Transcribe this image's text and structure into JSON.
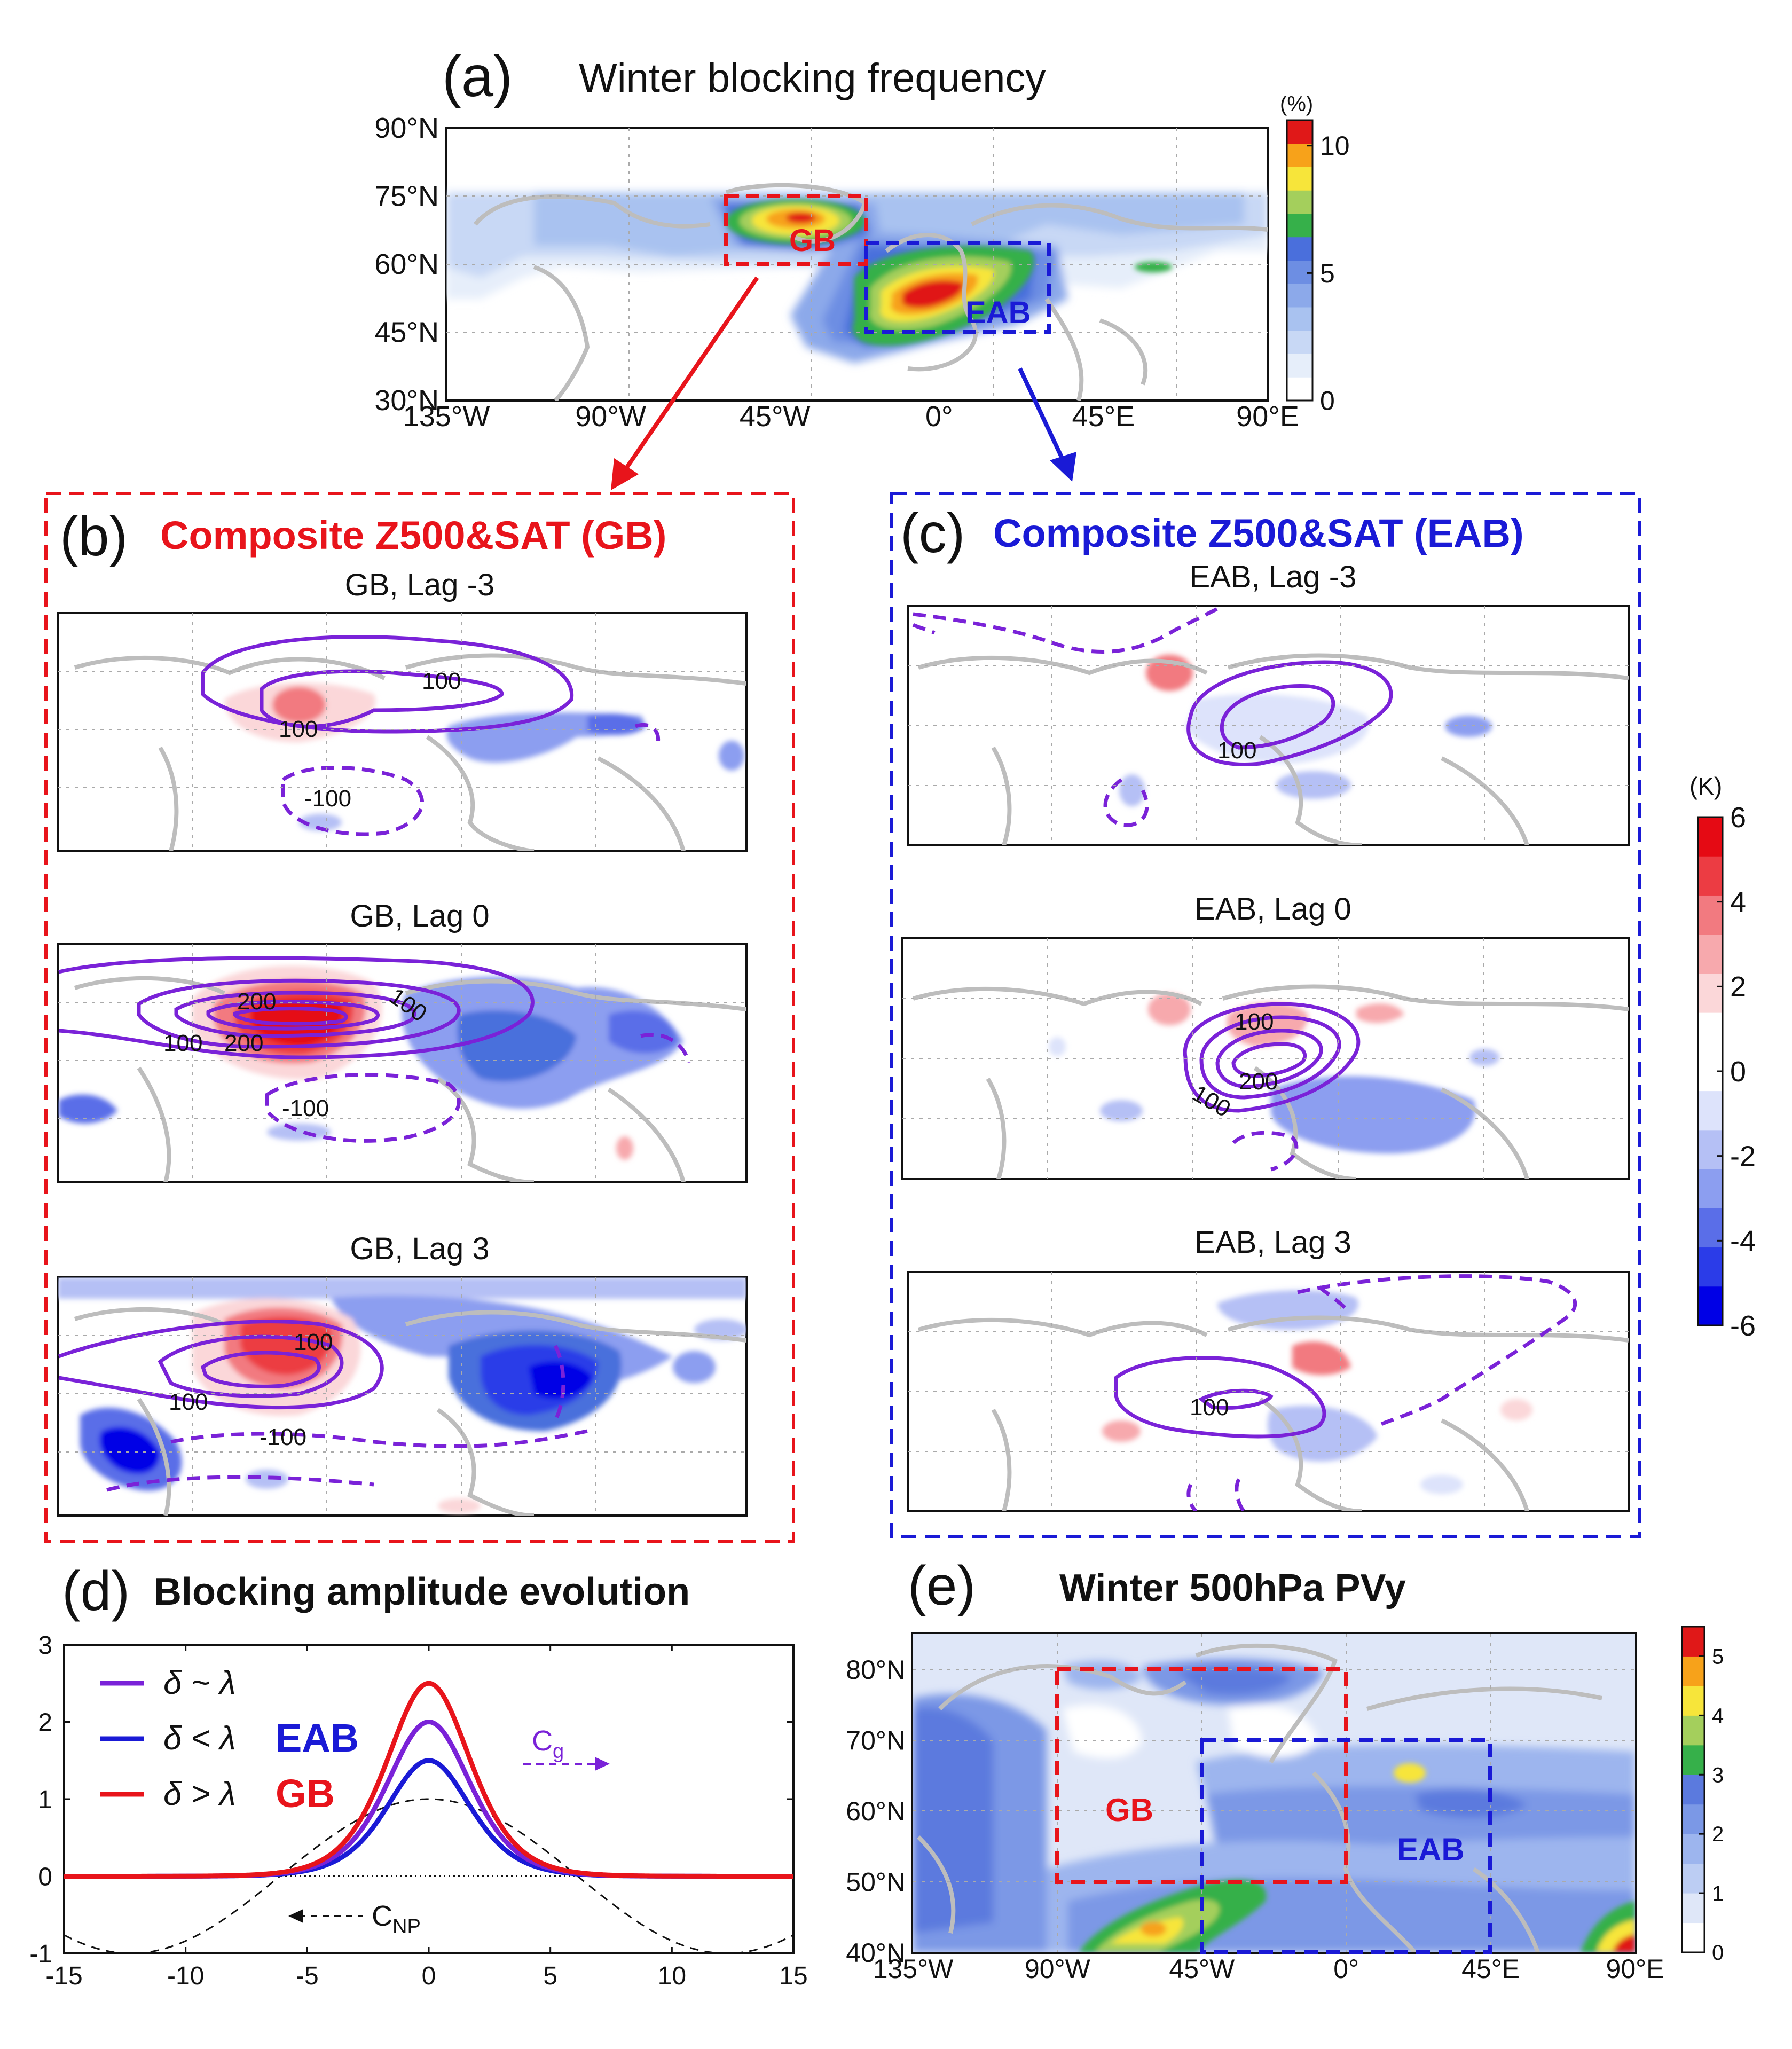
{
  "colors": {
    "red": "#e8141b",
    "blue": "#1a1ad6",
    "purple": "#7a22d8",
    "coast": "#bdbdbd",
    "black": "#111111"
  },
  "panels": {
    "a": {
      "letter": "(a)",
      "title": "Winter blocking frequency",
      "box_gb": "GB",
      "box_eab": "EAB",
      "cbar_unit": "(%)"
    },
    "b": {
      "letter": "(b)",
      "title": "Composite Z500&SAT (GB)",
      "sub": [
        "GB, Lag -3",
        "GB, Lag 0",
        "GB, Lag 3"
      ]
    },
    "c": {
      "letter": "(c)",
      "title": "Composite Z500&SAT (EAB)",
      "sub": [
        "EAB, Lag -3",
        "EAB, Lag 0",
        "EAB, Lag 3"
      ],
      "cbar_unit": "(K)"
    },
    "d": {
      "letter": "(d)",
      "title": "Blocking amplitude evolution"
    },
    "e": {
      "letter": "(e)",
      "title": "Winter 500hPa PVy",
      "box_gb": "GB",
      "box_eab": "EAB"
    }
  },
  "contour_labels": {
    "b1": [
      "100",
      "100",
      "-100"
    ],
    "b2": [
      "200",
      "100",
      "100",
      "200",
      "-100"
    ],
    "b3": [
      "100",
      "100",
      "-100"
    ],
    "c1": [
      "100"
    ],
    "c2": [
      "100",
      "200",
      "100"
    ],
    "c3": [
      "100"
    ]
  },
  "chart_data": [
    {
      "id": "a",
      "type": "heatmap",
      "title": "Winter blocking frequency",
      "xlabel_ticks": [
        "135°W",
        "90°W",
        "45°W",
        "0°",
        "45°E",
        "90°E"
      ],
      "ylabel_ticks": [
        "90°N",
        "75°N",
        "60°N",
        "45°N",
        "30°N"
      ],
      "xlim": [
        -135,
        90
      ],
      "ylim": [
        30,
        90
      ],
      "colorbar": {
        "unit": "(%)",
        "range": [
          0,
          11
        ],
        "ticks": [
          "10",
          "5",
          "0"
        ],
        "tick_values": [
          10,
          5,
          0
        ],
        "colors": [
          "#ffffff",
          "#e6eefa",
          "#c8d8f5",
          "#a9c2f0",
          "#8ca9ea",
          "#6d8ee3",
          "#4a6fdc",
          "#36b04a",
          "#a4cf5c",
          "#f7e53a",
          "#f7a21a",
          "#e01818"
        ]
      },
      "boxes": [
        {
          "name": "GB",
          "lon": [
            -60,
            -20
          ],
          "lat": [
            60,
            75
          ]
        },
        {
          "name": "EAB",
          "lon": [
            -20,
            30
          ],
          "lat": [
            45,
            65
          ]
        }
      ],
      "maxima": [
        {
          "lon": -42,
          "lat": 68,
          "value": 10.5
        },
        {
          "lon": 0,
          "lat": 55,
          "value": 10.8
        }
      ]
    },
    {
      "id": "b-c",
      "type": "heatmap",
      "colorbar": {
        "unit": "(K)",
        "range": [
          -6,
          6
        ],
        "ticks": [
          "6",
          "4",
          "2",
          "0",
          "-2",
          "-4",
          "-6"
        ],
        "tick_values": [
          6,
          4,
          2,
          0,
          -2,
          -4,
          -6
        ],
        "colors": [
          "#0000e6",
          "#2b3ce8",
          "#5a6ee8",
          "#8c9ef0",
          "#b5c0f5",
          "#dde3fb",
          "#ffffff",
          "#ffffff",
          "#fbd7d9",
          "#f7a9ad",
          "#f27a80",
          "#ec3c43",
          "#e50a14"
        ]
      },
      "contour_interval": 50,
      "note": "Z500 (gpm) contours with SAT (K) shading for lags -3, 0, 3 days"
    },
    {
      "id": "d",
      "type": "line",
      "title": "Blocking amplitude evolution",
      "xlim": [
        -15,
        15
      ],
      "ylim": [
        -1,
        3
      ],
      "xticks": [
        "-15",
        "-10",
        "-5",
        "0",
        "5",
        "10",
        "15"
      ],
      "yticks": [
        "3",
        "2",
        "1",
        "0",
        "-1"
      ],
      "xtick_values": [
        -15,
        -10,
        -5,
        0,
        5,
        10,
        15
      ],
      "ytick_values": [
        3,
        2,
        1,
        0,
        -1
      ],
      "series": [
        {
          "name": "δ ~ λ",
          "color": "#7a22d8",
          "peak": 2.0,
          "width": 2.3
        },
        {
          "name": "δ < λ",
          "color": "#1a1ad6",
          "peak": 1.5,
          "width": 2.3
        },
        {
          "name": "δ > λ",
          "color": "#e8141b",
          "peak": 2.5,
          "width": 2.3
        },
        {
          "name": "background wave",
          "color": "#111111",
          "amplitude": 1.0,
          "wavelength": 24.5,
          "dashed": true
        }
      ],
      "legend": [
        {
          "label": "δ ~ λ",
          "tag": ""
        },
        {
          "label": "δ < λ",
          "tag": "EAB"
        },
        {
          "label": "δ > λ",
          "tag": "GB"
        }
      ],
      "annotations": {
        "cg": "C",
        "cg_sub": "g",
        "cnp": "C",
        "cnp_sub": "NP"
      }
    },
    {
      "id": "e",
      "type": "heatmap",
      "title": "Winter 500hPa PVy",
      "xlabel_ticks": [
        "135°W",
        "90°W",
        "45°W",
        "0°",
        "45°E",
        "90°E"
      ],
      "ylabel_ticks": [
        "80°N",
        "70°N",
        "60°N",
        "50°N",
        "40°N"
      ],
      "xlim": [
        -135,
        90
      ],
      "ylim": [
        40,
        85
      ],
      "colorbar": {
        "range": [
          0,
          5.5
        ],
        "ticks": [
          "5",
          "4",
          "3",
          "2",
          "1",
          "0"
        ],
        "tick_values": [
          5,
          4,
          3,
          2,
          1,
          0
        ],
        "colors": [
          "#ffffff",
          "#dfe7f8",
          "#bccdf3",
          "#9db5ee",
          "#7b98e6",
          "#5b7ade",
          "#36b04a",
          "#a4cf5c",
          "#f7e53a",
          "#f7a21a",
          "#e01818"
        ]
      },
      "boxes": [
        {
          "name": "GB",
          "lon": [
            -90,
            0
          ],
          "lat": [
            50,
            80
          ]
        },
        {
          "name": "EAB",
          "lon": [
            -45,
            45
          ],
          "lat": [
            40,
            70
          ]
        }
      ]
    }
  ]
}
